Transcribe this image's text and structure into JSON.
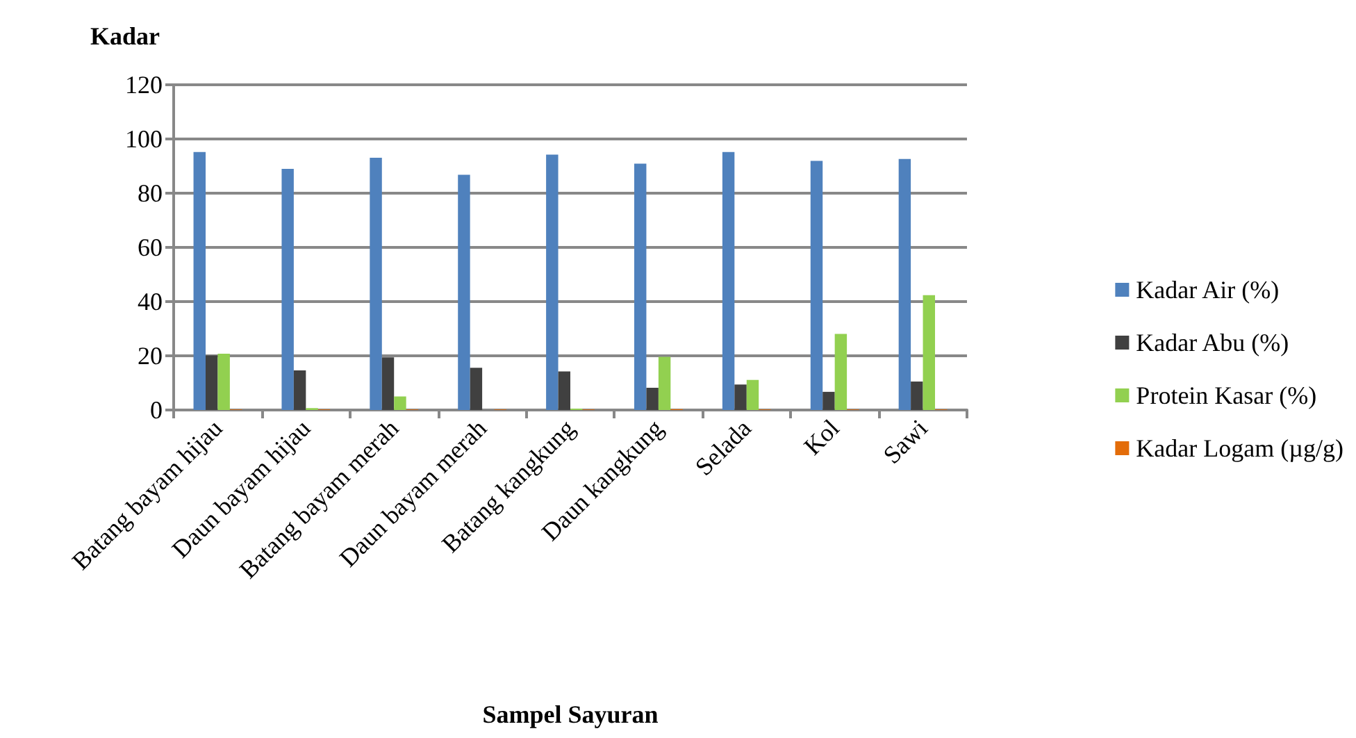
{
  "chart_data": {
    "type": "bar",
    "title": "Kadar",
    "xlabel": "Sampel Sayuran",
    "categories": [
      "Batang bayam hijau",
      "Daun bayam hijau",
      "Batang bayam merah",
      "Daun bayam merah",
      "Batang kangkung",
      "Daun kangkung",
      "Selada",
      "Kol",
      "Sawi"
    ],
    "series": [
      {
        "name": "Kadar Air (%)",
        "color": "#4f81bd",
        "values": [
          95.2,
          89,
          93.1,
          86.8,
          94.2,
          90.9,
          95.2,
          91.9,
          92.6
        ]
      },
      {
        "name": "Kadar Abu (%)",
        "color": "#404040",
        "values": [
          20.1,
          14.6,
          19.4,
          15.6,
          14.2,
          8.2,
          9.4,
          6.7,
          10.5
        ]
      },
      {
        "name": "Protein Kasar (%)",
        "color": "#92d050",
        "values": [
          20.8,
          0.7,
          5,
          0,
          0.5,
          19.6,
          11.1,
          28.1,
          42.4
        ]
      },
      {
        "name": "Kadar Logam (µg/g)",
        "color": "#e36c09",
        "values": [
          0.2,
          0.2,
          0.2,
          0.2,
          0.2,
          0.3,
          0.2,
          0.2,
          0.2
        ]
      }
    ],
    "ylim": [
      0,
      120
    ],
    "yticks": [
      0,
      20,
      40,
      60,
      80,
      100,
      120
    ],
    "grid": "y",
    "legend": "right"
  }
}
